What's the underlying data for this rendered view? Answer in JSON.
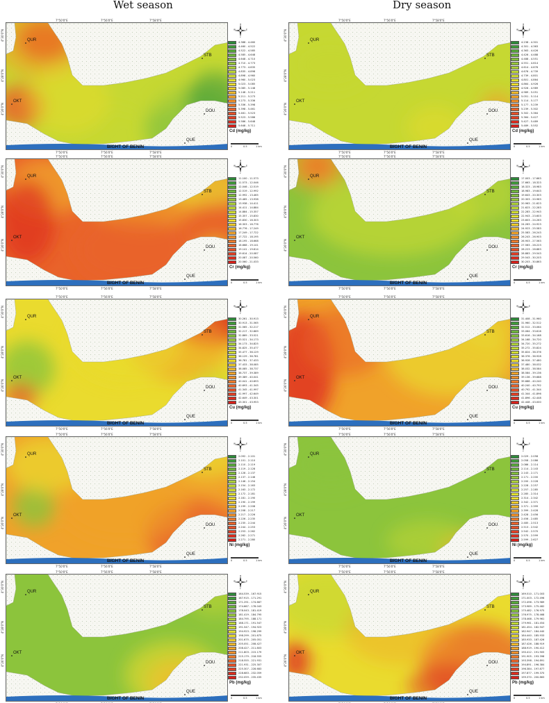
{
  "titles": {
    "wet": "Wet season",
    "dry": "Dry season"
  },
  "map_labels": {
    "sea": "BIGHT OF BENIN"
  },
  "scale": {
    "ticks": [
      "0",
      "0.5",
      "1 km"
    ]
  },
  "ticks": {
    "top": [
      "7°50'0\"E",
      "7°56'0\"E",
      "7°58'0\"E"
    ],
    "side": [
      "4°30'0\"N",
      "4°28'0\"N",
      "4°26'0\"N"
    ]
  },
  "stations": [
    "QUR",
    "STB",
    "OKT",
    "DOU",
    "QUE"
  ],
  "colors": {
    "green_dark": "#3f9b3a",
    "green": "#8cc43c",
    "yellow_green": "#c6d832",
    "yellow": "#eadb2e",
    "orange": "#f0a22a",
    "red_orange": "#e9632a",
    "red": "#de2c1e",
    "land": "#f7f7f2",
    "sea": "#2d6fbd"
  },
  "panels": [
    {
      "id": "cd-wet",
      "season": "wet",
      "metal": "Cd",
      "unit_label": "Cd (mg/kg)",
      "legend": [
        "4.388 - 4.460",
        "4.460 - 4.522",
        "4.522 - 4.585",
        "4.585 - 4.648",
        "4.648 - 4.710",
        "4.710 - 4.773",
        "4.773 - 4.835",
        "4.835 - 4.898",
        "4.898 - 4.960",
        "4.960 - 5.023",
        "5.023 - 5.085",
        "5.085 - 5.148",
        "5.148 - 5.211",
        "5.211 - 5.273",
        "5.273 - 5.336",
        "5.336 - 5.398",
        "5.398 - 5.461",
        "5.461 - 5.523",
        "5.523 - 5.586",
        "5.586 - 5.648",
        "5.648 - 5.711"
      ]
    },
    {
      "id": "cd-dry",
      "season": "dry",
      "metal": "Cd",
      "unit_label": "Cd (mg/kg)",
      "legend": [
        "4.238 - 4.301",
        "4.301 - 4.363",
        "4.363 - 4.426",
        "4.426 - 4.488",
        "4.488 - 4.551",
        "4.551 - 4.614",
        "4.614 - 4.676",
        "4.676 - 4.739",
        "4.739 - 4.801",
        "4.801 - 4.864",
        "4.864 - 4.926",
        "4.926 - 4.989",
        "4.989 - 5.051",
        "5.051 - 5.114",
        "5.114 - 5.177",
        "5.177 - 5.239",
        "5.239 - 5.302",
        "5.302 - 5.364",
        "5.364 - 5.427",
        "5.427 - 5.489",
        "5.489 - 5.552"
      ]
    },
    {
      "id": "cr-wet",
      "season": "wet",
      "metal": "Cr",
      "unit_label": "Cr (mg/kg)",
      "legend": [
        "11.100 - 11.573",
        "11.573 - 12.046",
        "12.046 - 12.519",
        "12.519 - 12.992",
        "12.992 - 13.465",
        "13.465 - 13.938",
        "13.938 - 14.411",
        "14.411 - 14.884",
        "14.884 - 15.357",
        "15.357 - 15.830",
        "15.830 - 16.303",
        "16.303 - 16.776",
        "16.776 - 17.249",
        "17.249 - 17.722",
        "17.722 - 18.195",
        "18.195 - 18.668",
        "18.668 - 19.141",
        "19.141 - 19.614",
        "19.614 - 20.087",
        "20.087 - 20.560",
        "20.560 - 21.033"
      ]
    },
    {
      "id": "cr-dry",
      "season": "dry",
      "metal": "Cr",
      "unit_label": "Cr (mg/kg)",
      "legend": [
        "17.003 - 17.663",
        "17.663 - 18.323",
        "18.323 - 18.983",
        "18.983 - 19.643",
        "19.643 - 20.303",
        "20.303 - 20.963",
        "20.963 - 21.623",
        "21.623 - 22.283",
        "22.283 - 22.943",
        "22.943 - 23.603",
        "23.603 - 24.263",
        "24.263 - 24.923",
        "24.923 - 25.583",
        "25.583 - 26.243",
        "26.243 - 26.903",
        "26.903 - 27.563",
        "27.563 - 28.223",
        "28.223 - 28.883",
        "28.883 - 29.543",
        "29.543 - 30.203",
        "30.203 - 30.863"
      ]
    },
    {
      "id": "cu-wet",
      "season": "wet",
      "metal": "Cu",
      "unit_label": "Cu (mg/kg)",
      "legend": [
        "30.261 - 30.913",
        "30.913 - 31.565",
        "31.565 - 32.217",
        "32.217 - 32.869",
        "32.869 - 33.521",
        "33.521 - 34.173",
        "34.173 - 34.825",
        "34.825 - 35.477",
        "35.477 - 36.129",
        "36.129 - 36.781",
        "36.781 - 37.433",
        "37.433 - 38.085",
        "38.085 - 38.737",
        "38.737 - 39.389",
        "39.389 - 40.041",
        "40.041 - 40.693",
        "40.693 - 41.345",
        "41.345 - 41.997",
        "41.997 - 42.649",
        "42.649 - 43.301",
        "43.301 - 43.953"
      ]
    },
    {
      "id": "cu-dry",
      "season": "dry",
      "metal": "Cu",
      "unit_label": "Cu (mg/kg)",
      "legend": [
        "31.408 - 31.960",
        "31.960 - 32.512",
        "32.512 - 33.064",
        "33.064 - 33.616",
        "33.616 - 34.168",
        "34.168 - 34.720",
        "34.720 - 35.272",
        "35.272 - 35.824",
        "35.824 - 36.376",
        "36.376 - 36.928",
        "36.928 - 37.480",
        "37.480 - 38.032",
        "38.032 - 38.584",
        "38.584 - 39.136",
        "39.136 - 39.688",
        "39.688 - 40.240",
        "40.240 - 40.792",
        "40.792 - 41.344",
        "41.344 - 41.896",
        "41.896 - 42.448",
        "42.448 - 43.000"
      ]
    },
    {
      "id": "ni-wet",
      "season": "wet",
      "metal": "Ni",
      "unit_label": "Ni (mg/kg)",
      "legend": [
        "2.092 - 2.101",
        "2.101 - 2.110",
        "2.110 - 2.119",
        "2.119 - 2.128",
        "2.128 - 2.137",
        "2.137 - 2.146",
        "2.146 - 2.154",
        "2.154 - 2.163",
        "2.163 - 2.172",
        "2.172 - 2.181",
        "2.181 - 2.190",
        "2.190 - 2.199",
        "2.199 - 2.208",
        "2.208 - 2.217",
        "2.217 - 2.226",
        "2.226 - 2.235",
        "2.235 - 2.244",
        "2.244 - 2.253",
        "2.253 - 2.262",
        "2.262 - 2.271",
        "2.271 - 2.280"
      ]
    },
    {
      "id": "ni-dry",
      "season": "dry",
      "metal": "Ni",
      "unit_label": "Ni (mg/kg)",
      "legend": [
        "2.029 - 2.058",
        "2.058 - 2.086",
        "2.086 - 2.114",
        "2.114 - 2.143",
        "2.143 - 2.171",
        "2.171 - 2.200",
        "2.200 - 2.228",
        "2.228 - 2.257",
        "2.257 - 2.285",
        "2.285 - 2.314",
        "2.314 - 2.342",
        "2.342 - 2.371",
        "2.371 - 2.399",
        "2.399 - 2.428",
        "2.428 - 2.456",
        "2.456 - 2.485",
        "2.485 - 2.513",
        "2.513 - 2.542",
        "2.542 - 2.570",
        "2.570 - 2.599",
        "2.599 - 2.627"
      ]
    },
    {
      "id": "pb-wet",
      "season": "wet",
      "metal": "Pb",
      "unit_label": "Pb (mg/kg)",
      "legend": [
        "164.539 - 167.915",
        "167.915 - 171.291",
        "171.291 - 174.667",
        "174.667 - 178.043",
        "178.043 - 181.419",
        "181.419 - 184.795",
        "184.795 - 188.171",
        "188.171 - 191.547",
        "191.547 - 194.923",
        "194.923 - 198.299",
        "198.299 - 201.675",
        "201.675 - 205.051",
        "205.051 - 208.427",
        "208.427 - 211.803",
        "211.803 - 215.179",
        "215.179 - 218.555",
        "218.555 - 221.931",
        "221.931 - 225.307",
        "225.307 - 228.683",
        "228.683 - 232.059",
        "232.059 - 235.435"
      ]
    },
    {
      "id": "pb-dry",
      "season": "dry",
      "metal": "Pb",
      "unit_label": "Pb (mg/kg)",
      "legend": [
        "169.510 - 171.003",
        "171.003 - 172.496",
        "172.496 - 173.989",
        "173.989 - 175.482",
        "175.482 - 176.975",
        "176.975 - 178.468",
        "178.468 - 179.961",
        "179.961 - 181.454",
        "181.454 - 182.947",
        "182.947 - 184.440",
        "184.440 - 185.933",
        "185.933 - 187.426",
        "187.426 - 188.919",
        "188.919 - 190.412",
        "190.412 - 191.905",
        "191.905 - 193.398",
        "193.398 - 194.891",
        "194.891 - 196.384",
        "196.384 - 197.877",
        "197.877 - 199.370",
        "199.370 - 200.863"
      ]
    }
  ]
}
